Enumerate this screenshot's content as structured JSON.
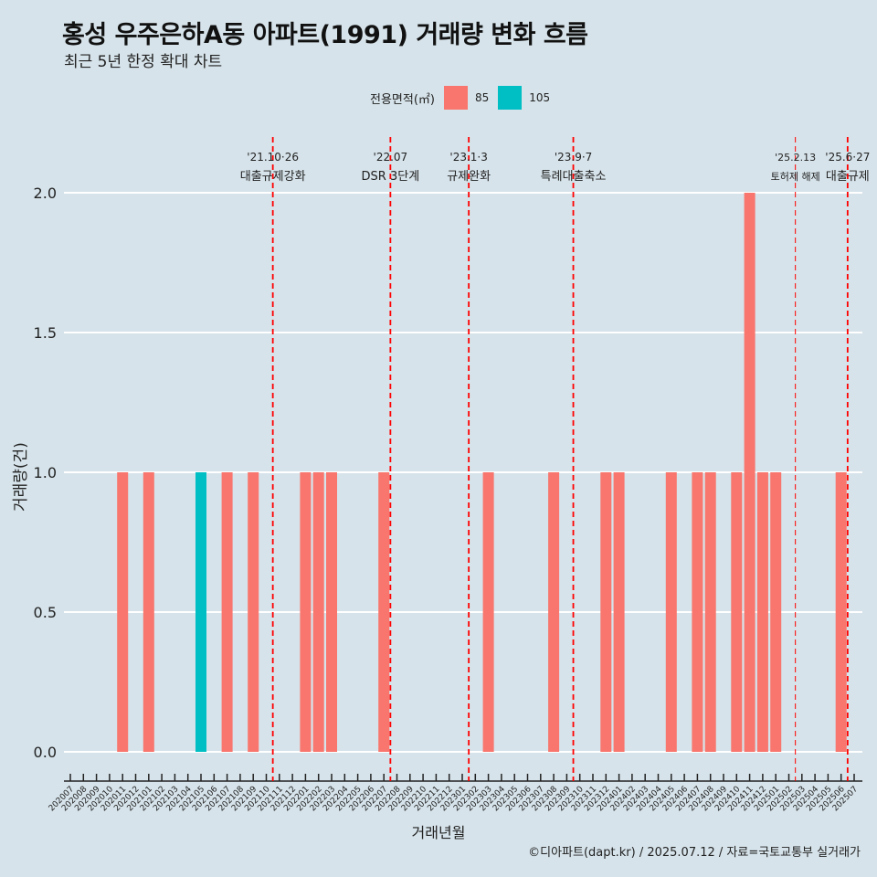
{
  "chart_data": {
    "type": "bar",
    "title": "홍성 우주은하A동 아파트(1991) 거래량 변화 흐름",
    "subtitle": "최근 5년 한정 확대 차트",
    "xlabel": "거래년월",
    "ylabel": "거래량(건)",
    "caption": "©디아파트(dapt.kr) / 2025.07.12 / 자료=국토교통부 실거래가",
    "legend": {
      "title": "전용면적(㎡)",
      "position": "top",
      "entries": [
        {
          "name": "85",
          "color": "#f8766d"
        },
        {
          "name": "105",
          "color": "#00bfc4"
        }
      ]
    },
    "ylim": [
      0,
      2.15
    ],
    "yticks": [
      "0.0",
      "0.5",
      "1.0",
      "1.5",
      "2.0"
    ],
    "grid": true,
    "categories": [
      "202007",
      "202008",
      "202009",
      "202010",
      "202011",
      "202012",
      "202101",
      "202102",
      "202103",
      "202104",
      "202105",
      "202106",
      "202107",
      "202108",
      "202109",
      "202110",
      "202111",
      "202112",
      "202201",
      "202202",
      "202203",
      "202204",
      "202205",
      "202206",
      "202207",
      "202208",
      "202209",
      "202210",
      "202211",
      "202212",
      "202301",
      "202302",
      "202303",
      "202304",
      "202305",
      "202306",
      "202307",
      "202308",
      "202309",
      "202310",
      "202311",
      "202312",
      "202401",
      "202402",
      "202403",
      "202404",
      "202405",
      "202406",
      "202407",
      "202408",
      "202409",
      "202410",
      "202411",
      "202412",
      "202501",
      "202502",
      "202503",
      "202504",
      "202505",
      "202506",
      "202507"
    ],
    "series": [
      {
        "name": "85",
        "color": "#f8766d",
        "values": [
          0,
          0,
          0,
          0,
          1,
          0,
          1,
          0,
          0,
          0,
          0,
          0,
          1,
          0,
          1,
          0,
          0,
          0,
          1,
          1,
          1,
          0,
          0,
          0,
          1,
          0,
          0,
          0,
          0,
          0,
          0,
          0,
          1,
          0,
          0,
          0,
          0,
          1,
          0,
          0,
          0,
          1,
          1,
          0,
          0,
          0,
          1,
          0,
          1,
          1,
          0,
          1,
          2,
          1,
          1,
          0,
          0,
          0,
          0,
          1,
          0
        ]
      },
      {
        "name": "105",
        "color": "#00bfc4",
        "values": [
          0,
          0,
          0,
          0,
          0,
          0,
          0,
          0,
          0,
          0,
          1,
          0,
          0,
          0,
          0,
          0,
          0,
          0,
          0,
          0,
          0,
          0,
          0,
          0,
          0,
          0,
          0,
          0,
          0,
          0,
          0,
          0,
          0,
          0,
          0,
          0,
          0,
          0,
          0,
          0,
          0,
          0,
          0,
          0,
          0,
          0,
          0,
          0,
          0,
          0,
          0,
          0,
          0,
          0,
          0,
          0,
          0,
          0,
          0,
          0,
          0
        ]
      }
    ],
    "events": [
      {
        "date": "'21.10·26",
        "label": "대출규제강화",
        "x": 15.5,
        "linewidth": "thick"
      },
      {
        "date": "'22.07",
        "label": "DSR 3단계",
        "x": 24.5,
        "linewidth": "thick"
      },
      {
        "date": "'23.1·3",
        "label": "규제완화",
        "x": 30.5,
        "linewidth": "thick"
      },
      {
        "date": "'23.9·7",
        "label": "특례대출축소",
        "x": 38.5,
        "linewidth": "thick"
      },
      {
        "date": "'25.2.13",
        "label": "토허제 해제",
        "x": 55.5,
        "linewidth": "thin"
      },
      {
        "date": "'25.6·27",
        "label": "대출규제",
        "x": 59.5,
        "linewidth": "thick"
      }
    ]
  }
}
